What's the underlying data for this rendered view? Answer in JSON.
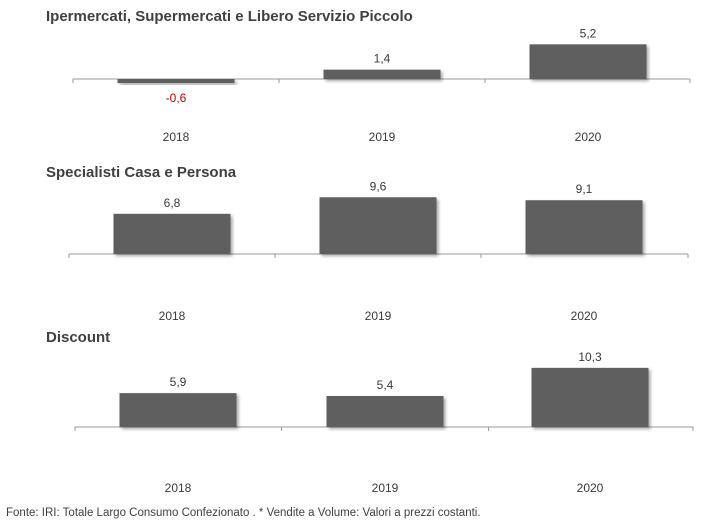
{
  "chart_data": [
    {
      "type": "bar",
      "title": "Ipermercati,  Supermercati e Libero Servizio Piccolo",
      "categories": [
        "2018",
        "2019",
        "2020"
      ],
      "values": [
        -0.6,
        1.4,
        5.2
      ],
      "value_labels": [
        "-0,6",
        "1,4",
        "5,2"
      ],
      "ylim": [
        -4,
        8
      ],
      "colors": {
        "bar": "#5f5f5f",
        "negative_label": "#c00000",
        "label": "#3a3a3a",
        "axis": "#9a9a9a"
      }
    },
    {
      "type": "bar",
      "title": "Specialisti  Casa e Persona",
      "categories": [
        "2018",
        "2019",
        "2020"
      ],
      "values": [
        6.8,
        9.6,
        9.1
      ],
      "value_labels": [
        "6,8",
        "9,6",
        "9,1"
      ],
      "ylim": [
        -10,
        12
      ],
      "colors": {
        "bar": "#5f5f5f",
        "negative_label": "#c00000",
        "label": "#3a3a3a",
        "axis": "#9a9a9a"
      }
    },
    {
      "type": "bar",
      "title": "Discount",
      "categories": [
        "2018",
        "2019",
        "2020"
      ],
      "values": [
        5.9,
        5.4,
        10.3
      ],
      "value_labels": [
        "5,9",
        "5,4",
        "10,3"
      ],
      "ylim": [
        -13,
        14
      ],
      "colors": {
        "bar": "#5f5f5f",
        "negative_label": "#c00000",
        "label": "#3a3a3a",
        "axis": "#9a9a9a"
      }
    }
  ],
  "footnote": "Fonte: IRI: Totale Largo Consumo Confezionato . * Vendite a Volume: Valori a prezzi costanti."
}
